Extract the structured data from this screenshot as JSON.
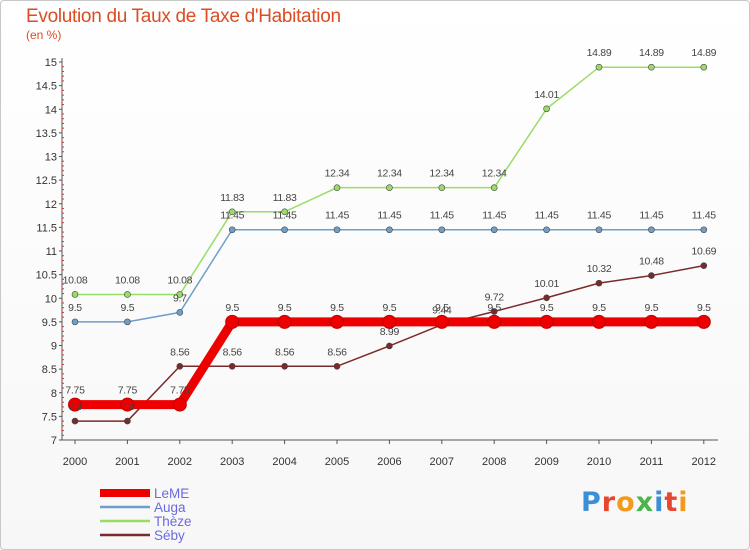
{
  "header": {
    "title": "Evolution du Taux de Taxe d'Habitation",
    "unit": "(en %)"
  },
  "logo": {
    "text": "Proxiti",
    "letters": [
      "P",
      "r",
      "o",
      "x",
      "i",
      "t",
      "i"
    ]
  },
  "chart_data": {
    "type": "line",
    "title": "Evolution du Taux de Taxe d'Habitation",
    "ylabel": "(en %)",
    "xlabel": "",
    "x": [
      "2000",
      "2001",
      "2002",
      "2003",
      "2004",
      "2005",
      "2006",
      "2007",
      "2008",
      "2009",
      "2010",
      "2011",
      "2012"
    ],
    "ylim": [
      7,
      15
    ],
    "yticks": [
      "7",
      "7.5",
      "8",
      "8.5",
      "9",
      "9.5",
      "10",
      "10.5",
      "11",
      "11.5",
      "12",
      "12.5",
      "13",
      "13.5",
      "14",
      "14.5",
      "15"
    ],
    "grid": false,
    "legend_position": "bottom-left",
    "series": [
      {
        "name": "LeME",
        "color": "#ee0000",
        "values": [
          7.75,
          7.75,
          7.75,
          9.5,
          9.5,
          9.5,
          9.5,
          9.5,
          9.5,
          9.5,
          9.5,
          9.5,
          9.5
        ],
        "labels": [
          "7.75",
          "7.75",
          "7.75",
          "9.5",
          "9.5",
          "9.5",
          "9.5",
          "9.5",
          "9.5",
          "9.5",
          "9.5",
          "9.5",
          "9.5"
        ]
      },
      {
        "name": "Auga",
        "color": "#6f9fc9",
        "values": [
          9.5,
          9.5,
          9.7,
          11.45,
          11.45,
          11.45,
          11.45,
          11.45,
          11.45,
          11.45,
          11.45,
          11.45,
          11.45
        ],
        "labels": [
          "9.5",
          "9.5",
          "9.7",
          "11.45",
          "11.45",
          "11.45",
          "11.45",
          "11.45",
          "11.45",
          "11.45",
          "11.45",
          "11.45",
          "11.45"
        ]
      },
      {
        "name": "Thèze",
        "color": "#99dd66",
        "values": [
          10.08,
          10.08,
          10.08,
          11.83,
          11.83,
          12.34,
          12.34,
          12.34,
          12.34,
          14.01,
          14.89,
          14.89,
          14.89
        ],
        "labels": [
          "10.08",
          "10.08",
          "10.08",
          "11.83",
          "11.83",
          "12.34",
          "12.34",
          "12.34",
          "12.34",
          "14.01",
          "14.89",
          "14.89",
          "14.89"
        ]
      },
      {
        "name": "Séby",
        "color": "#7a2a2a",
        "values": [
          7.4,
          7.4,
          8.56,
          8.56,
          8.56,
          8.56,
          8.99,
          9.44,
          9.72,
          10.01,
          10.32,
          10.48,
          10.69
        ],
        "labels": [
          "7.4",
          "7.4",
          "8.56",
          "8.56",
          "8.56",
          "8.56",
          "8.99",
          "9.44",
          "9.72",
          "10.01",
          "10.32",
          "10.48",
          "10.69"
        ]
      }
    ]
  }
}
